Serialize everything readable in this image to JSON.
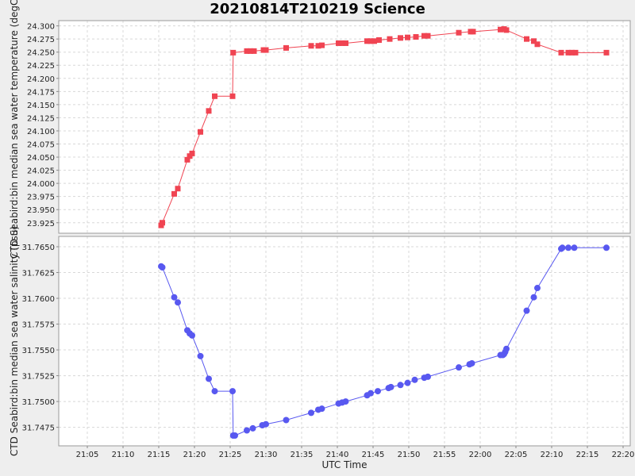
{
  "title": "20210814T210219 Science",
  "colors": {
    "temperature": "#f04452",
    "salinity": "#5858f0",
    "plot_bg": "#ffffff",
    "grid": "#d8d8d8"
  },
  "chart_data": [
    {
      "type": "line",
      "ylabel": "CTD Seabird:bin median sea water temperature (degC)",
      "ylim": [
        23.905,
        24.31
      ],
      "yticks": [
        "23.925",
        "23.950",
        "23.975",
        "24.000",
        "24.025",
        "24.050",
        "24.075",
        "24.100",
        "24.125",
        "24.150",
        "24.175",
        "24.200",
        "24.225",
        "24.250",
        "24.275",
        "24.300"
      ],
      "marker": "square",
      "grid": true,
      "x": [
        "21:15:20",
        "21:15:30",
        "21:17:10",
        "21:17:40",
        "21:19:00",
        "21:19:20",
        "21:19:40",
        "21:20:50",
        "21:22:00",
        "21:22:50",
        "21:25:20",
        "21:25:25",
        "21:27:20",
        "21:27:50",
        "21:28:20",
        "21:29:40",
        "21:30:00",
        "21:32:50",
        "21:36:20",
        "21:37:20",
        "21:37:50",
        "21:40:10",
        "21:40:40",
        "21:41:10",
        "21:44:10",
        "21:44:40",
        "21:45:10",
        "21:45:50",
        "21:47:20",
        "21:48:50",
        "21:49:50",
        "21:51:00",
        "21:52:10",
        "21:52:40",
        "21:57:00",
        "21:58:40",
        "21:59:00",
        "22:02:50",
        "22:03:20",
        "22:03:40",
        "22:06:30",
        "22:07:30",
        "22:08:00",
        "22:11:20",
        "22:12:20",
        "22:12:50",
        "22:13:20",
        "22:17:40"
      ],
      "y": [
        23.92,
        23.925,
        23.98,
        23.99,
        24.045,
        24.052,
        24.057,
        24.098,
        24.138,
        24.166,
        24.166,
        24.249,
        24.252,
        24.252,
        24.252,
        24.254,
        24.254,
        24.258,
        24.262,
        24.262,
        24.263,
        24.267,
        24.267,
        24.267,
        24.271,
        24.271,
        24.271,
        24.273,
        24.275,
        24.277,
        24.278,
        24.279,
        24.281,
        24.281,
        24.287,
        24.289,
        24.289,
        24.293,
        24.294,
        24.292,
        24.275,
        24.271,
        24.265,
        24.249,
        24.249,
        24.249,
        24.249,
        24.249
      ]
    },
    {
      "type": "line",
      "xlabel": "UTC Time",
      "ylabel": "CTD Seabird:bin median sea water salinity (psu)",
      "ylim": [
        31.7457,
        31.766
      ],
      "yticks": [
        "31.7475",
        "31.7500",
        "31.7525",
        "31.7550",
        "31.7575",
        "31.7600",
        "31.7625",
        "31.7650"
      ],
      "xticks": [
        "21:05",
        "21:10",
        "21:15",
        "21:20",
        "21:25",
        "21:30",
        "21:35",
        "21:40",
        "21:45",
        "21:50",
        "21:55",
        "22:00",
        "22:05",
        "22:10",
        "22:15",
        "22:20"
      ],
      "xlim": [
        "21:01:00",
        "22:21:00"
      ],
      "marker": "circle",
      "grid": true,
      "x": [
        "21:15:20",
        "21:15:30",
        "21:17:10",
        "21:17:40",
        "21:19:00",
        "21:19:20",
        "21:19:40",
        "21:20:50",
        "21:22:00",
        "21:22:50",
        "21:25:20",
        "21:25:25",
        "21:25:40",
        "21:27:20",
        "21:28:10",
        "21:29:30",
        "21:30:00",
        "21:32:50",
        "21:36:20",
        "21:37:20",
        "21:37:50",
        "21:40:10",
        "21:40:40",
        "21:41:10",
        "21:44:10",
        "21:44:40",
        "21:45:40",
        "21:47:10",
        "21:47:30",
        "21:48:50",
        "21:49:50",
        "21:50:50",
        "21:52:10",
        "21:52:40",
        "21:57:00",
        "21:58:30",
        "21:58:50",
        "22:02:50",
        "22:03:10",
        "22:03:20",
        "22:03:30",
        "22:03:40",
        "22:06:30",
        "22:07:30",
        "22:08:00",
        "22:11:20",
        "22:11:30",
        "22:12:20",
        "22:13:10",
        "22:17:40"
      ],
      "y": [
        31.7631,
        31.763,
        31.7601,
        31.7596,
        31.7569,
        31.7566,
        31.7564,
        31.7544,
        31.7522,
        31.751,
        31.751,
        31.7467,
        31.7467,
        31.7472,
        31.7474,
        31.7477,
        31.7478,
        31.7482,
        31.7489,
        31.7492,
        31.7493,
        31.7498,
        31.7499,
        31.75,
        31.7506,
        31.7508,
        31.751,
        31.7513,
        31.7514,
        31.7516,
        31.7518,
        31.7521,
        31.7523,
        31.7524,
        31.7533,
        31.7536,
        31.7537,
        31.7545,
        31.7545,
        31.7546,
        31.7548,
        31.7551,
        31.7588,
        31.7601,
        31.761,
        31.7648,
        31.7649,
        31.7649,
        31.7649,
        31.7649
      ]
    }
  ]
}
